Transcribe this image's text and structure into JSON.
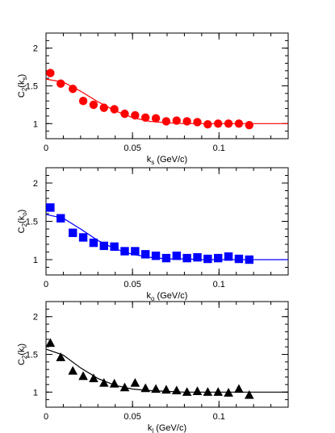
{
  "chart_data": [
    {
      "type": "scatter",
      "xlabel": "k",
      "xlabel_sub": "s",
      "xlabel_unit": " (GeV/c)",
      "ylabel": "C",
      "ylabel_sub": "2",
      "ylabel_arg": "k",
      "ylabel_arg_sub": "s",
      "xlim": [
        0,
        0.14
      ],
      "ylim": [
        0.8,
        2.2
      ],
      "x_ticks": [
        0,
        0.05,
        0.1
      ],
      "x_tick_labels": [
        "0",
        "0.05",
        "0.1"
      ],
      "y_ticks": [
        1,
        1.5,
        2
      ],
      "y_tick_labels": [
        "1",
        "1.5",
        "2"
      ],
      "grid": false,
      "marker": "circle",
      "color": "#ff0000",
      "points": {
        "x": [
          0.0025,
          0.0085,
          0.0155,
          0.0215,
          0.0275,
          0.0335,
          0.0395,
          0.0455,
          0.0515,
          0.0575,
          0.0635,
          0.0695,
          0.0755,
          0.0815,
          0.0875,
          0.0935,
          0.0995,
          0.1055,
          0.1115,
          0.1175
        ],
        "y": [
          1.67,
          1.53,
          1.46,
          1.3,
          1.25,
          1.21,
          1.19,
          1.13,
          1.11,
          1.08,
          1.07,
          1.03,
          1.04,
          1.03,
          1.02,
          0.99,
          1.0,
          1.0,
          1.0,
          0.98
        ]
      },
      "fit": {
        "x": [
          0,
          0.01,
          0.02,
          0.03,
          0.04,
          0.05,
          0.06,
          0.07,
          0.08,
          0.09,
          0.1,
          0.11,
          0.12,
          0.13,
          0.14
        ],
        "y": [
          1.59,
          1.55,
          1.43,
          1.29,
          1.17,
          1.08,
          1.03,
          1.01,
          1.0,
          1.0,
          1.0,
          1.0,
          1.0,
          1.0,
          1.0
        ]
      }
    },
    {
      "type": "scatter",
      "xlabel": "k",
      "xlabel_sub": "o",
      "xlabel_unit": " (GeV/c)",
      "ylabel": "C",
      "ylabel_sub": "2",
      "ylabel_arg": "k",
      "ylabel_arg_sub": "o",
      "xlim": [
        0,
        0.14
      ],
      "ylim": [
        0.8,
        2.2
      ],
      "x_ticks": [
        0,
        0.05,
        0.1
      ],
      "x_tick_labels": [
        "0",
        "0.05",
        "0.1"
      ],
      "y_ticks": [
        1,
        1.5,
        2
      ],
      "y_tick_labels": [
        "1",
        "1.5",
        "2"
      ],
      "grid": false,
      "marker": "square",
      "color": "#0000ff",
      "points": {
        "x": [
          0.0025,
          0.0085,
          0.0155,
          0.0215,
          0.0275,
          0.0335,
          0.0395,
          0.0455,
          0.0515,
          0.0575,
          0.0635,
          0.0695,
          0.0755,
          0.0815,
          0.0875,
          0.0935,
          0.0995,
          0.1055,
          0.1115,
          0.1175
        ],
        "y": [
          1.68,
          1.54,
          1.35,
          1.29,
          1.22,
          1.18,
          1.17,
          1.11,
          1.11,
          1.07,
          1.05,
          1.02,
          1.05,
          1.02,
          1.03,
          1.01,
          1.02,
          1.04,
          1.01,
          1.0
        ]
      },
      "fit": {
        "x": [
          0,
          0.01,
          0.02,
          0.03,
          0.04,
          0.05,
          0.06,
          0.07,
          0.08,
          0.09,
          0.1,
          0.11,
          0.12,
          0.13,
          0.14
        ],
        "y": [
          1.59,
          1.54,
          1.4,
          1.25,
          1.14,
          1.07,
          1.03,
          1.01,
          1.01,
          1.0,
          1.0,
          1.0,
          1.0,
          1.0,
          1.0
        ]
      }
    },
    {
      "type": "scatter",
      "xlabel": "k",
      "xlabel_sub": "l",
      "xlabel_unit": " (GeV/c)",
      "ylabel": "C",
      "ylabel_sub": "2",
      "ylabel_arg": "k",
      "ylabel_arg_sub": "l",
      "xlim": [
        0,
        0.14
      ],
      "ylim": [
        0.8,
        2.2
      ],
      "x_ticks": [
        0,
        0.05,
        0.1
      ],
      "x_tick_labels": [
        "0",
        "0.05",
        "0.1"
      ],
      "y_ticks": [
        1,
        1.5,
        2
      ],
      "y_tick_labels": [
        "1",
        "1.5",
        "2"
      ],
      "grid": false,
      "marker": "triangle",
      "color": "#000000",
      "points": {
        "x": [
          0.0025,
          0.0085,
          0.0155,
          0.0215,
          0.0275,
          0.0335,
          0.0395,
          0.0455,
          0.0515,
          0.0575,
          0.0635,
          0.0695,
          0.0755,
          0.0815,
          0.0875,
          0.0935,
          0.0995,
          0.1055,
          0.1115,
          0.1175
        ],
        "y": [
          1.65,
          1.46,
          1.28,
          1.21,
          1.18,
          1.12,
          1.11,
          1.06,
          1.12,
          1.05,
          1.04,
          1.03,
          1.02,
          1.0,
          1.01,
          1.0,
          1.0,
          0.99,
          1.04,
          0.96
        ]
      },
      "fit": {
        "x": [
          0,
          0.01,
          0.02,
          0.03,
          0.04,
          0.05,
          0.06,
          0.07,
          0.08,
          0.09,
          0.1,
          0.11,
          0.12,
          0.13,
          0.14
        ],
        "y": [
          1.57,
          1.49,
          1.32,
          1.18,
          1.09,
          1.04,
          1.02,
          1.01,
          1.0,
          1.0,
          1.0,
          1.0,
          1.0,
          1.0,
          1.0
        ]
      }
    }
  ]
}
